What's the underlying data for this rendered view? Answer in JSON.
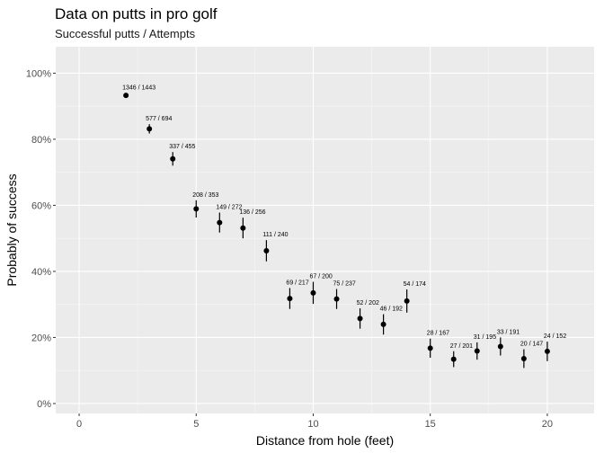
{
  "chart_data": {
    "type": "scatter",
    "title": "Data on putts in pro golf",
    "subtitle": "Successful putts / Attempts",
    "xlabel": "Distance from hole (feet)",
    "ylabel": "Probably of success",
    "xlim": [
      -1,
      22
    ],
    "ylim": [
      -0.03,
      1.08
    ],
    "x_ticks": [
      {
        "value": 0,
        "label": "0"
      },
      {
        "value": 5,
        "label": "5"
      },
      {
        "value": 10,
        "label": "10"
      },
      {
        "value": 15,
        "label": "15"
      },
      {
        "value": 20,
        "label": "20"
      }
    ],
    "y_ticks": [
      {
        "value": 0.0,
        "label": "0%"
      },
      {
        "value": 0.2,
        "label": "20%"
      },
      {
        "value": 0.4,
        "label": "40%"
      },
      {
        "value": 0.6,
        "label": "60%"
      },
      {
        "value": 0.8,
        "label": "80%"
      },
      {
        "value": 1.0,
        "label": "100%"
      }
    ],
    "grid": true,
    "points": [
      {
        "x": 2,
        "successes": 1346,
        "attempts": 1443,
        "label": "1346 / 1443"
      },
      {
        "x": 3,
        "successes": 577,
        "attempts": 694,
        "label": "577 / 694"
      },
      {
        "x": 4,
        "successes": 337,
        "attempts": 455,
        "label": "337 / 455"
      },
      {
        "x": 5,
        "successes": 208,
        "attempts": 353,
        "label": "208 / 353"
      },
      {
        "x": 6,
        "successes": 149,
        "attempts": 272,
        "label": "149 / 272"
      },
      {
        "x": 7,
        "successes": 136,
        "attempts": 256,
        "label": "136 / 256"
      },
      {
        "x": 8,
        "successes": 111,
        "attempts": 240,
        "label": "111 / 240"
      },
      {
        "x": 9,
        "successes": 69,
        "attempts": 217,
        "label": "69 / 217"
      },
      {
        "x": 10,
        "successes": 67,
        "attempts": 200,
        "label": "67 / 200"
      },
      {
        "x": 11,
        "successes": 75,
        "attempts": 237,
        "label": "75 / 237"
      },
      {
        "x": 12,
        "successes": 52,
        "attempts": 202,
        "label": "52 / 202"
      },
      {
        "x": 13,
        "successes": 46,
        "attempts": 192,
        "label": "46 / 192"
      },
      {
        "x": 14,
        "successes": 54,
        "attempts": 174,
        "label": "54 / 174"
      },
      {
        "x": 15,
        "successes": 28,
        "attempts": 167,
        "label": "28 / 167"
      },
      {
        "x": 16,
        "successes": 27,
        "attempts": 201,
        "label": "27 / 201"
      },
      {
        "x": 17,
        "successes": 31,
        "attempts": 195,
        "label": "31 / 195"
      },
      {
        "x": 18,
        "successes": 33,
        "attempts": 191,
        "label": "33 / 191"
      },
      {
        "x": 19,
        "successes": 20,
        "attempts": 147,
        "label": "20 / 147"
      },
      {
        "x": 20,
        "successes": 24,
        "attempts": 152,
        "label": "24 / 152"
      }
    ]
  },
  "colors": {
    "panel_background": "#ebebeb",
    "grid_major": "#ffffff",
    "point": "#000000",
    "tick_label": "#4d4d4d"
  }
}
